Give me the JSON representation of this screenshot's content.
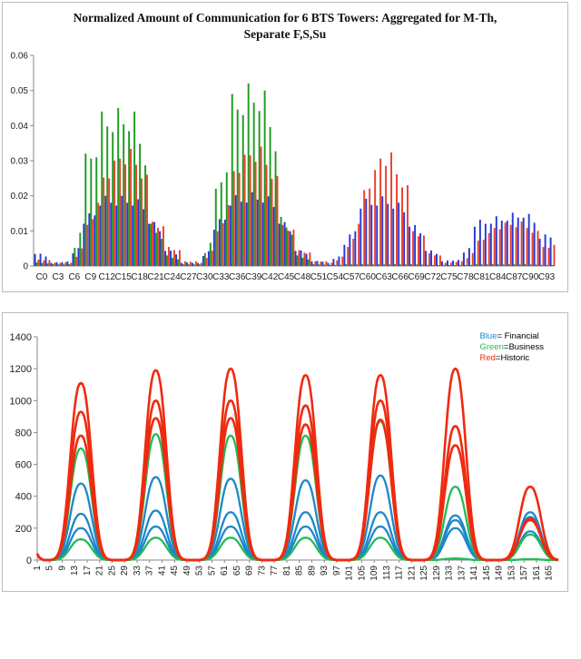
{
  "chart_data": [
    {
      "type": "bar",
      "title_line1": "Normalized Amount of Communication for 6 BTS Towers: Aggregated for M-Th,",
      "title_line2": "Separate F,S,Su",
      "xlabel": "",
      "ylabel": "",
      "ylim": [
        0,
        0.06
      ],
      "yticks": [
        "0",
        "0.01",
        "0.02",
        "0.03",
        "0.04",
        "0.05",
        "0.06"
      ],
      "categories": [
        "C0",
        "C3",
        "C6",
        "C9",
        "C12",
        "C15",
        "C18",
        "C21",
        "C24",
        "C27",
        "C30",
        "C33",
        "C36",
        "C39",
        "C42",
        "C45",
        "C48",
        "C51",
        "C54",
        "C57",
        "C60",
        "C63",
        "C66",
        "C69",
        "C72",
        "C75",
        "C78",
        "C81",
        "C84",
        "C87",
        "C90",
        "C93"
      ],
      "categories_per_label": 3,
      "legend": "none",
      "grid": false,
      "series_colors": [
        "#2637d8",
        "#1f9a1f",
        "#e8412c"
      ],
      "category_peaks": [
        {
          "blue": 0.004,
          "green": 0.001,
          "red": 0.002
        },
        {
          "blue": 0.001,
          "green": 0.0005,
          "red": 0.001
        },
        {
          "blue": 0.0015,
          "green": 0.0005,
          "red": 0.001
        },
        {
          "blue": 0.014,
          "green": 0.032,
          "red": 0.013
        },
        {
          "blue": 0.02,
          "green": 0.044,
          "red": 0.028
        },
        {
          "blue": 0.02,
          "green": 0.045,
          "red": 0.034
        },
        {
          "blue": 0.02,
          "green": 0.044,
          "red": 0.032
        },
        {
          "blue": 0.014,
          "green": 0.012,
          "red": 0.014
        },
        {
          "blue": 0.005,
          "green": 0.003,
          "red": 0.006
        },
        {
          "blue": 0.001,
          "green": 0.0005,
          "red": 0.0015
        },
        {
          "blue": 0.001,
          "green": 0.0005,
          "red": 0.001
        },
        {
          "blue": 0.012,
          "green": 0.022,
          "red": 0.011
        },
        {
          "blue": 0.02,
          "green": 0.049,
          "red": 0.03
        },
        {
          "blue": 0.021,
          "green": 0.052,
          "red": 0.035
        },
        {
          "blue": 0.021,
          "green": 0.05,
          "red": 0.032
        },
        {
          "blue": 0.014,
          "green": 0.014,
          "red": 0.013
        },
        {
          "blue": 0.005,
          "green": 0.003,
          "red": 0.005
        },
        {
          "blue": 0.0015,
          "green": 0.0005,
          "red": 0.0015
        },
        {
          "blue": 0.001,
          "green": 0.0003,
          "red": 0.001
        },
        {
          "blue": 0.007,
          "green": 0.0005,
          "red": 0.006
        },
        {
          "blue": 0.019,
          "green": 0.0005,
          "red": 0.024
        },
        {
          "blue": 0.02,
          "green": 0.0005,
          "red": 0.034
        },
        {
          "blue": 0.019,
          "green": 0.0005,
          "red": 0.029
        },
        {
          "blue": 0.013,
          "green": 0.0005,
          "red": 0.011
        },
        {
          "blue": 0.005,
          "green": 0.0003,
          "red": 0.004
        },
        {
          "blue": 0.0015,
          "green": 0.0003,
          "red": 0.001
        },
        {
          "blue": 0.002,
          "green": 0.0003,
          "red": 0.0015
        },
        {
          "blue": 0.013,
          "green": 0.0005,
          "red": 0.008
        },
        {
          "blue": 0.014,
          "green": 0.0005,
          "red": 0.012
        },
        {
          "blue": 0.015,
          "green": 0.0005,
          "red": 0.013
        },
        {
          "blue": 0.016,
          "green": 0.0005,
          "red": 0.012
        },
        {
          "blue": 0.009,
          "green": 0.0003,
          "red": 0.006
        }
      ]
    },
    {
      "type": "line",
      "title": "",
      "xlabel": "",
      "ylabel": "",
      "ylim": [
        0,
        1400
      ],
      "yticks": [
        "0",
        "200",
        "400",
        "600",
        "800",
        "1000",
        "1200",
        "1400"
      ],
      "xlim": [
        1,
        168
      ],
      "xticks": [
        "1",
        "5",
        "9",
        "13",
        "17",
        "21",
        "25",
        "29",
        "33",
        "37",
        "41",
        "45",
        "49",
        "53",
        "57",
        "61",
        "65",
        "69",
        "73",
        "77",
        "81",
        "85",
        "89",
        "93",
        "97",
        "101",
        "105",
        "109",
        "113",
        "117",
        "121",
        "125",
        "129",
        "133",
        "137",
        "141",
        "145",
        "149",
        "153",
        "157",
        "161",
        "165"
      ],
      "legend": [
        {
          "color_word": "Blue",
          "label": "= Financial",
          "color": "#1e88c9"
        },
        {
          "color_word": "Green",
          "label": "=Business",
          "color": "#22bb55"
        },
        {
          "color_word": "Red",
          "label": "=Historic",
          "color": "#ee2b10"
        }
      ],
      "legend_position": "top-right",
      "grid": false,
      "day_centers": [
        15,
        39,
        63,
        87,
        111,
        135,
        159
      ],
      "series": [
        {
          "group": "Historic",
          "color": "#ee2b10",
          "peaks": [
            1110,
            1190,
            1200,
            1160,
            1160,
            1200,
            460
          ]
        },
        {
          "group": "Historic",
          "color": "#ee2b10",
          "peaks": [
            930,
            1000,
            1000,
            970,
            1000,
            840,
            260
          ]
        },
        {
          "group": "Historic",
          "color": "#ee2b10",
          "peaks": [
            780,
            890,
            890,
            850,
            880,
            720,
            250
          ]
        },
        {
          "group": "Business",
          "color": "#22bb55",
          "peaks": [
            700,
            790,
            780,
            780,
            870,
            460,
            160
          ]
        },
        {
          "group": "Financial",
          "color": "#1e88c9",
          "peaks": [
            480,
            520,
            510,
            500,
            530,
            280,
            300
          ]
        },
        {
          "group": "Financial",
          "color": "#1e88c9",
          "peaks": [
            290,
            310,
            300,
            300,
            300,
            250,
            270
          ]
        },
        {
          "group": "Financial",
          "color": "#1e88c9",
          "peaks": [
            200,
            210,
            210,
            210,
            210,
            200,
            180
          ]
        },
        {
          "group": "Business",
          "color": "#22bb55",
          "peaks": [
            130,
            140,
            140,
            140,
            140,
            10,
            5
          ]
        }
      ]
    }
  ]
}
